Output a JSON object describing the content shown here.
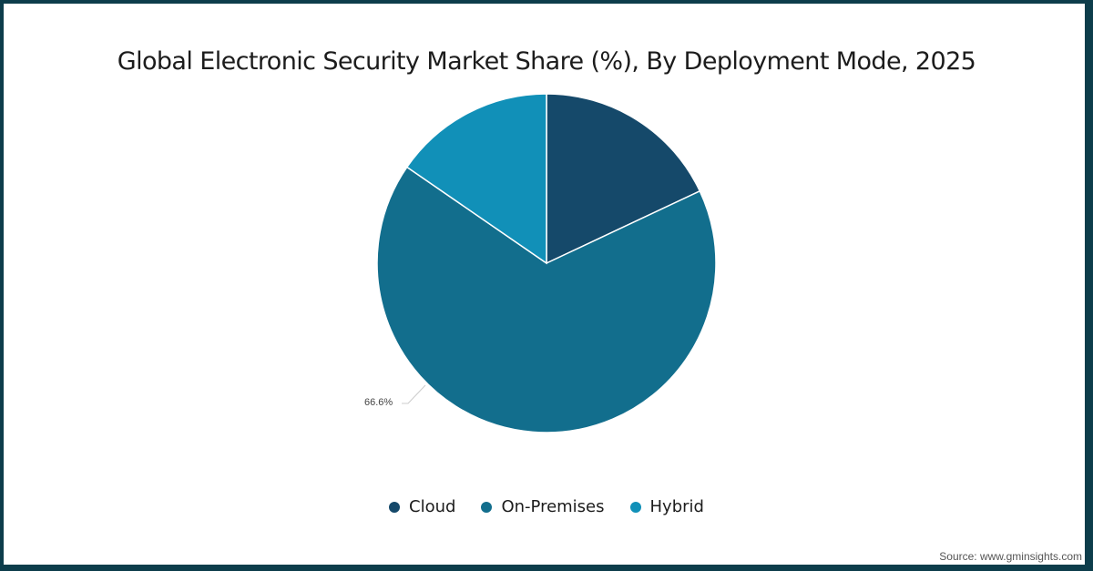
{
  "chart_data": {
    "type": "pie",
    "title": "Global Electronic Security Market Share (%), By Deployment Mode, 2025",
    "categories": [
      "Cloud",
      "On-Premises",
      "Hybrid"
    ],
    "values": [
      18.0,
      66.6,
      15.4
    ],
    "colors": [
      "#15496a",
      "#126e8d",
      "#1190b8"
    ],
    "data_labels": [
      {
        "category": "On-Premises",
        "text": "66.6%"
      }
    ],
    "legend_position": "bottom",
    "start_angle_deg": 0
  },
  "title": "Global Electronic Security Market Share (%), By Deployment Mode, 2025",
  "legend": [
    {
      "label": "Cloud",
      "color": "#15496a"
    },
    {
      "label": "On-Premises",
      "color": "#126e8d"
    },
    {
      "label": "Hybrid",
      "color": "#1190b8"
    }
  ],
  "data_label": "66.6%",
  "source": "Source: www.gminsights.com"
}
